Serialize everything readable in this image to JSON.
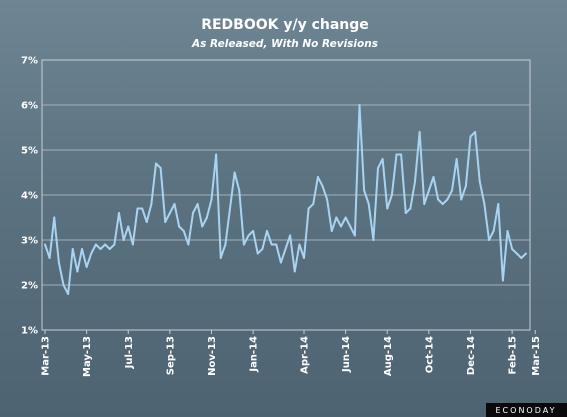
{
  "chart_data": {
    "type": "line",
    "title": "REDBOOK y/y change",
    "subtitle": "As Released, With No Revisions",
    "xlabel": "",
    "ylabel": "",
    "ylim": [
      1,
      7
    ],
    "y_ticks": [
      "1%",
      "2%",
      "3%",
      "4%",
      "5%",
      "6%",
      "7%"
    ],
    "x_ticks": [
      "Mar-13",
      "May-13",
      "Jul-13",
      "Sep-13",
      "Nov-13",
      "Jan-14",
      "Apr-14",
      "Jun-14",
      "Aug-14",
      "Oct-14",
      "Dec-14",
      "Feb-15",
      "Mar-15"
    ],
    "x_tick_index": [
      0,
      9,
      18,
      27,
      36,
      45,
      56,
      65,
      74,
      83,
      92,
      101,
      106
    ],
    "grid": true,
    "legend": "none",
    "line_color": "#a9d3f0",
    "series": [
      {
        "values": [
          2.9,
          2.6,
          3.5,
          2.5,
          2.0,
          1.8,
          2.8,
          2.3,
          2.8,
          2.4,
          2.7,
          2.9,
          2.8,
          2.9,
          2.8,
          2.9,
          3.6,
          3.0,
          3.3,
          2.9,
          3.7,
          3.7,
          3.4,
          3.8,
          4.7,
          4.6,
          3.4,
          3.6,
          3.8,
          3.3,
          3.2,
          2.9,
          3.6,
          3.8,
          3.3,
          3.5,
          3.9,
          4.9,
          2.6,
          2.9,
          3.7,
          4.5,
          4.1,
          2.9,
          3.1,
          3.2,
          2.7,
          2.8,
          3.2,
          2.9,
          2.9,
          2.5,
          2.8,
          3.1,
          2.3,
          2.9,
          2.6,
          3.7,
          3.8,
          4.4,
          4.2,
          3.9,
          3.2,
          3.5,
          3.3,
          3.5,
          3.3,
          3.1,
          6.0,
          4.1,
          3.8,
          3.0,
          4.6,
          4.8,
          3.7,
          4.0,
          4.9,
          4.9,
          3.6,
          3.7,
          4.3,
          5.4,
          3.8,
          4.1,
          4.4,
          3.9,
          3.8,
          3.9,
          4.1,
          4.8,
          3.9,
          4.2,
          5.3,
          5.4,
          4.3,
          3.8,
          3.0,
          3.2,
          3.8,
          2.1,
          3.2,
          2.8,
          2.7,
          2.6,
          2.7
        ]
      }
    ]
  },
  "branding": {
    "logo_text": "ECONODAY"
  }
}
